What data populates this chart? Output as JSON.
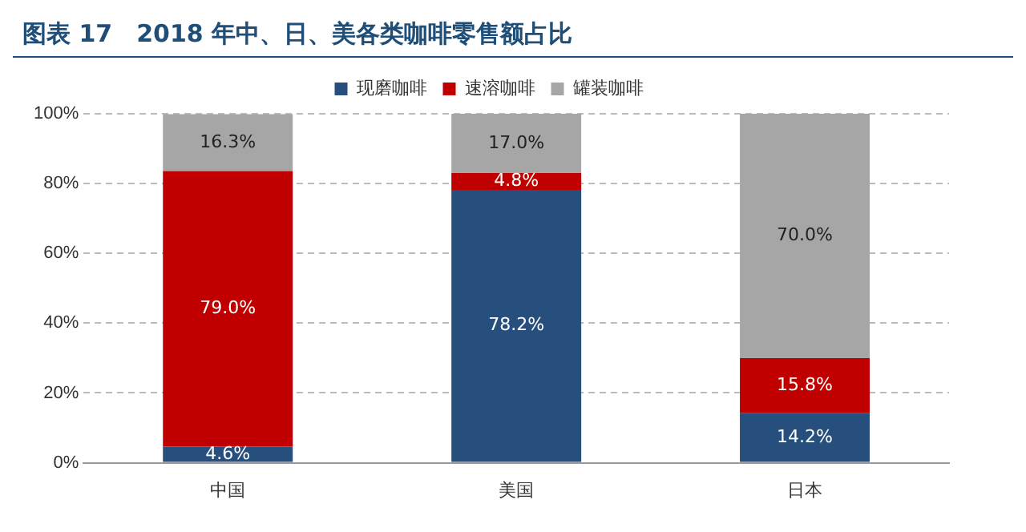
{
  "chart_data": {
    "type": "bar",
    "title": "图表 17　2018 年中、日、美各类咖啡零售额占比",
    "categories": [
      "中国",
      "美国",
      "日本"
    ],
    "stacked": true,
    "series": [
      {
        "name": "现磨咖啡",
        "color": "#264f7d",
        "values": [
          4.6,
          78.2,
          14.2
        ],
        "value_labels": [
          "4.6%",
          "78.2%",
          "14.2%"
        ]
      },
      {
        "name": "速溶咖啡",
        "color": "#c00000",
        "values": [
          79.0,
          4.8,
          15.8
        ],
        "value_labels": [
          "79.0%",
          "4.8%",
          "15.8%"
        ]
      },
      {
        "name": "罐装咖啡",
        "color": "#a6a6a6",
        "values": [
          16.3,
          17.0,
          70.0
        ],
        "value_labels": [
          "16.3%",
          "17.0%",
          "70.0%"
        ]
      }
    ],
    "ylim": [
      0,
      100
    ],
    "yticks": [
      {
        "value": 0,
        "label": "0%"
      },
      {
        "value": 20,
        "label": "20%"
      },
      {
        "value": 40,
        "label": "40%"
      },
      {
        "value": 60,
        "label": "60%"
      },
      {
        "value": 80,
        "label": "80%"
      },
      {
        "value": 100,
        "label": "100%"
      }
    ],
    "grid": "y",
    "legend": "top"
  }
}
